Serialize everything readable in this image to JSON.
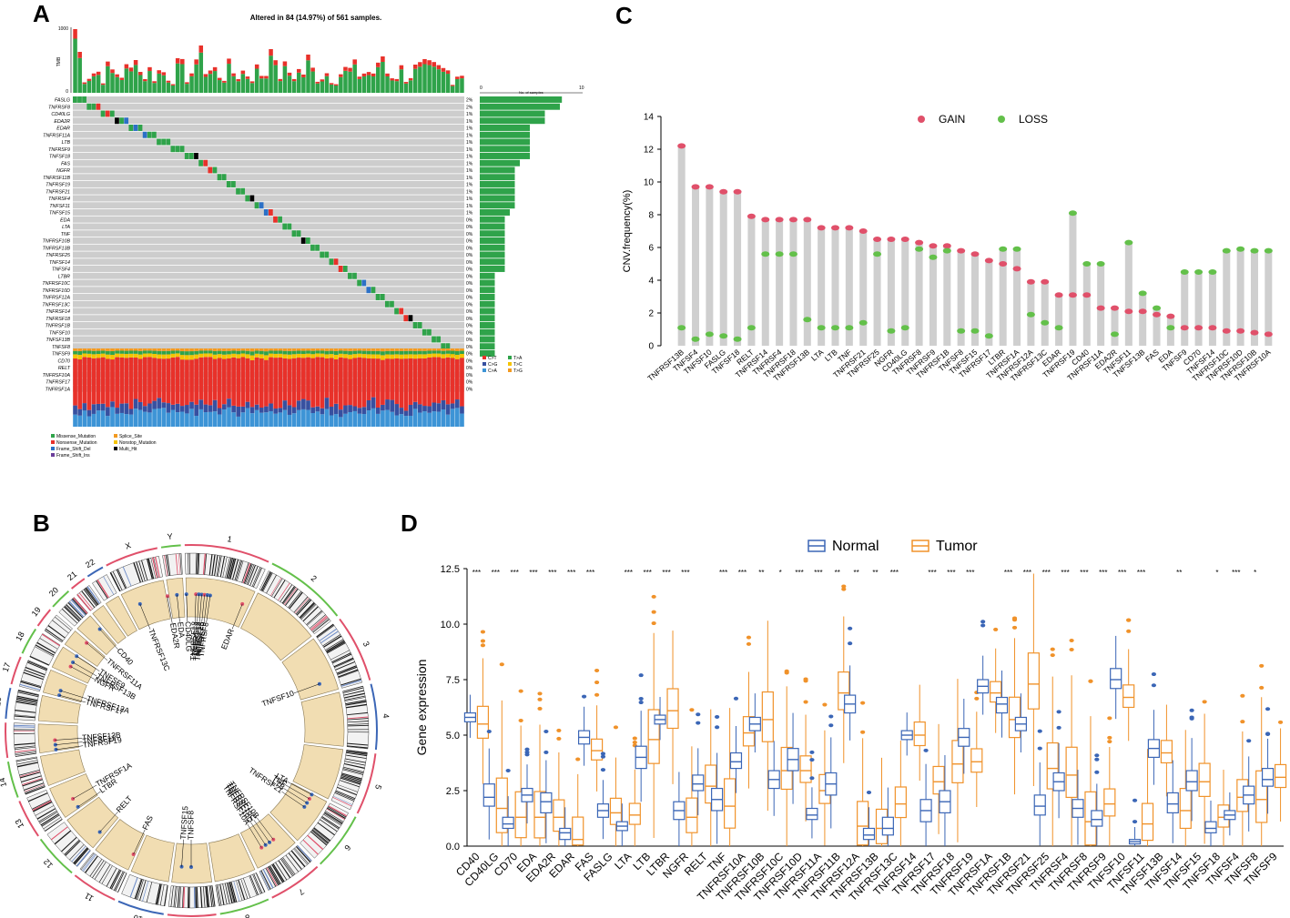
{
  "panels": {
    "a": "A",
    "b": "B",
    "c": "C",
    "d": "D"
  },
  "oncoplot": {
    "title": "Altered in 84 (14.97%) of 561 samples.",
    "tmb_label": "TMB",
    "tmb_ticks": [
      "1000",
      "0"
    ],
    "side_axis_label": "No. of samples",
    "side_ticks": [
      "0",
      "10"
    ],
    "genes": [
      {
        "name": "FASLG",
        "pct": "2%",
        "bar": 8.2
      },
      {
        "name": "TNFRSF8",
        "pct": "2%",
        "bar": 8.0
      },
      {
        "name": "CD40LG",
        "pct": "1%",
        "bar": 6.5
      },
      {
        "name": "EDA2R",
        "pct": "1%",
        "bar": 6.5
      },
      {
        "name": "EDAR",
        "pct": "1%",
        "bar": 5.0
      },
      {
        "name": "TNFRSF11A",
        "pct": "1%",
        "bar": 5.0
      },
      {
        "name": "LTB",
        "pct": "1%",
        "bar": 5.0
      },
      {
        "name": "TNFRSF9",
        "pct": "1%",
        "bar": 5.0
      },
      {
        "name": "TNFSF18",
        "pct": "1%",
        "bar": 5.0
      },
      {
        "name": "FAS",
        "pct": "1%",
        "bar": 4.0
      },
      {
        "name": "NGFR",
        "pct": "1%",
        "bar": 3.5
      },
      {
        "name": "TNFRSF11B",
        "pct": "1%",
        "bar": 3.5
      },
      {
        "name": "TNFRSF19",
        "pct": "1%",
        "bar": 3.5
      },
      {
        "name": "TNFRSF21",
        "pct": "1%",
        "bar": 3.5
      },
      {
        "name": "TNFRSF4",
        "pct": "1%",
        "bar": 3.5
      },
      {
        "name": "TNFSF11",
        "pct": "1%",
        "bar": 3.5
      },
      {
        "name": "TNFSF15",
        "pct": "1%",
        "bar": 3.0
      },
      {
        "name": "EDA",
        "pct": "0%",
        "bar": 2.5
      },
      {
        "name": "LTA",
        "pct": "0%",
        "bar": 2.5
      },
      {
        "name": "TNF",
        "pct": "0%",
        "bar": 2.5
      },
      {
        "name": "TNFRSF10B",
        "pct": "0%",
        "bar": 2.5
      },
      {
        "name": "TNFRSF13B",
        "pct": "0%",
        "bar": 2.5
      },
      {
        "name": "TNFRSF25",
        "pct": "0%",
        "bar": 2.5
      },
      {
        "name": "TNFSF14",
        "pct": "0%",
        "bar": 2.5
      },
      {
        "name": "TNFSF4",
        "pct": "0%",
        "bar": 2.5
      },
      {
        "name": "LTBR",
        "pct": "0%",
        "bar": 1.5
      },
      {
        "name": "TNFRSF10C",
        "pct": "0%",
        "bar": 1.5
      },
      {
        "name": "TNFRSF10D",
        "pct": "0%",
        "bar": 1.5
      },
      {
        "name": "TNFRSF12A",
        "pct": "0%",
        "bar": 1.5
      },
      {
        "name": "TNFRSF13C",
        "pct": "0%",
        "bar": 1.5
      },
      {
        "name": "TNFRSF14",
        "pct": "0%",
        "bar": 1.5
      },
      {
        "name": "TNFRSF18",
        "pct": "0%",
        "bar": 1.5
      },
      {
        "name": "TNFRSF1B",
        "pct": "0%",
        "bar": 1.5
      },
      {
        "name": "TNFSF10",
        "pct": "0%",
        "bar": 1.5
      },
      {
        "name": "TNFSF13B",
        "pct": "0%",
        "bar": 1.5
      },
      {
        "name": "TNFSF8",
        "pct": "0%",
        "bar": 1.5
      },
      {
        "name": "TNFSF9",
        "pct": "0%",
        "bar": 1.5
      },
      {
        "name": "CD70",
        "pct": "0%",
        "bar": 0
      },
      {
        "name": "RELT",
        "pct": "0%",
        "bar": 0
      },
      {
        "name": "TNFRSF10A",
        "pct": "0%",
        "bar": 0
      },
      {
        "name": "TNFRSF17",
        "pct": "0%",
        "bar": 0
      },
      {
        "name": "TNFRSF1A",
        "pct": "0%",
        "bar": 0
      }
    ],
    "titv_legend": [
      "C>T",
      "C>G",
      "C>A",
      "T>A",
      "T>C",
      "T>G"
    ],
    "titv_colors": [
      "#e8312a",
      "#3750a0",
      "#3d94d6",
      "#2fa34a",
      "#f5c400",
      "#f39a20"
    ],
    "variant_legend": [
      "Missense_Mutation",
      "Nonsense_Mutation",
      "Frame_Shift_Del",
      "Frame_Shift_Ins",
      "Splice_Site",
      "Nonstop_Mutation",
      "Multi_Hit"
    ],
    "variant_colors": [
      "#2fa34a",
      "#e8312a",
      "#2b70c6",
      "#6a3d9a",
      "#f39a20",
      "#f5c400",
      "#000000"
    ]
  },
  "circos": {
    "chromosomes": [
      "1",
      "2",
      "3",
      "4",
      "5",
      "6",
      "7",
      "8",
      "9",
      "10",
      "11",
      "12",
      "13",
      "14",
      "15",
      "16",
      "17",
      "18",
      "19",
      "20",
      "21",
      "22",
      "X",
      "Y"
    ],
    "gene_labels": [
      "TNFRSF18",
      "TNFRSF4",
      "TNFRSF14",
      "TNFRSF25",
      "TNFRSF9",
      "TNFRSF8",
      "EDAR",
      "TNFSF10",
      "LTA",
      "TNF",
      "LTB",
      "TNFRSF21",
      "TNFRSF10B",
      "TNFRSF10C",
      "TNFRSF10D",
      "TNFRSF10A",
      "TNFSF8",
      "TNFSF15",
      "FAS",
      "RELT",
      "LTBR",
      "TNFRSF1A",
      "TNFRSF19",
      "TNFSF11",
      "TNFSF13B",
      "TNFRSF17",
      "TNFRSF12A",
      "NGFR",
      "TNFRSF13B",
      "TNFSF9",
      "TNFRSF11A",
      "CD40",
      "TNFRSF13C",
      "EDA2R",
      "EDA",
      "CD40LG"
    ]
  },
  "chart_data": [
    {
      "type": "lollipop",
      "title": "",
      "ylabel": "CNV.frequency(%)",
      "ylim": [
        0,
        14
      ],
      "yticks": [
        "0",
        "2",
        "4",
        "6",
        "8",
        "10",
        "12",
        "14"
      ],
      "legend": [
        "GAIN",
        "LOSS"
      ],
      "colors": {
        "gain": "#e0506a",
        "loss": "#63c04a"
      },
      "categories": [
        "TNFRSF13B",
        "TNFSF4",
        "TNFSF10",
        "FASLG",
        "TNFSF18",
        "RELT",
        "TNFRSF14",
        "TNFRSF4",
        "TNFRSF18",
        "TNFRSF13B",
        "LTA",
        "LTB",
        "TNF",
        "TNFRSF21",
        "TNFRSF25",
        "NGFR",
        "CD40LG",
        "TNFRSF8",
        "TNFRSF9",
        "TNFRSF1B",
        "TNFSF8",
        "TNFSF15",
        "TNFRSF17",
        "LTBR",
        "TNFRSF1A",
        "TNFRSF12A",
        "TNFRSF13C",
        "EDAR",
        "TNFRSF19",
        "CD40",
        "TNFRSF11A",
        "EDA2R",
        "TNFSF11",
        "TNFSF13B",
        "FAS",
        "EDA",
        "TNFSF9",
        "CD70",
        "TNFSF14",
        "TNFRSF10C",
        "TNFRSF10D",
        "TNFRSF10B",
        "TNFRSF10A"
      ],
      "series": [
        {
          "name": "GAIN",
          "values": [
            12.2,
            9.7,
            9.7,
            9.4,
            9.4,
            7.9,
            7.7,
            7.7,
            7.7,
            7.7,
            7.2,
            7.2,
            7.2,
            7.0,
            6.5,
            6.5,
            6.5,
            6.3,
            6.1,
            6.1,
            5.8,
            5.6,
            5.2,
            5.0,
            4.7,
            3.9,
            3.9,
            3.1,
            3.1,
            3.1,
            2.3,
            2.3,
            2.1,
            2.1,
            1.9,
            1.8,
            1.1,
            1.1,
            1.1,
            0.9,
            0.9,
            0.8,
            0.7
          ]
        },
        {
          "name": "LOSS",
          "values": [
            1.1,
            0.4,
            0.7,
            0.6,
            0.4,
            1.1,
            5.6,
            5.6,
            5.6,
            1.6,
            1.1,
            1.1,
            1.1,
            1.4,
            5.6,
            0.9,
            1.1,
            5.9,
            5.4,
            5.8,
            0.9,
            0.9,
            0.6,
            5.9,
            5.9,
            1.9,
            1.4,
            1.1,
            8.1,
            5.0,
            5.0,
            0.7,
            6.3,
            3.2,
            2.3,
            1.1,
            4.5,
            4.5,
            4.5,
            5.8,
            5.9,
            5.8,
            5.8
          ]
        }
      ]
    },
    {
      "type": "box",
      "ylabel": "Gene expression",
      "ylim": [
        0,
        12.5
      ],
      "yticks": [
        "0.0",
        "2.5",
        "5.0",
        "7.5",
        "10.0",
        "12.5"
      ],
      "legend": [
        "Normal",
        "Tumor"
      ],
      "colors": {
        "normal": "#3b66b6",
        "tumor": "#f0922a"
      },
      "categories": [
        "CD40",
        "CD40LG",
        "CD70",
        "EDA",
        "EDA2R",
        "EDAR",
        "FAS",
        "FASLG",
        "LTA",
        "LTB",
        "LTBR",
        "NGFR",
        "RELT",
        "TNF",
        "TNFRSF10A",
        "TNFRSF10B",
        "TNFRSF10C",
        "TNFRSF10D",
        "TNFRSF11A",
        "TNFRSF11B",
        "TNFRSF12A",
        "TNFRSF13B",
        "TNFRSF13C",
        "TNFRSF14",
        "TNFRSF17",
        "TNFRSF18",
        "TNFRSF19",
        "TNFRSF1A",
        "TNFRSF1B",
        "TNFRSF21",
        "TNFRSF25",
        "TNFRSF4",
        "TNFRSF8",
        "TNFRSF9",
        "TNFSF10",
        "TNFSF11",
        "TNFSF13B",
        "TNFSF14",
        "TNFSF15",
        "TNFSF18",
        "TNFSF4",
        "TNFSF8",
        "TNFSF9"
      ],
      "significance": [
        "***",
        "***",
        "***",
        "***",
        "***",
        "***",
        "***",
        "",
        "***",
        "***",
        "***",
        "***",
        "",
        "***",
        "***",
        "**",
        "*",
        "***",
        "***",
        "**",
        "**",
        "**",
        "***",
        "",
        "***",
        "***",
        "***",
        "",
        "***",
        "***",
        "***",
        "***",
        "***",
        "***",
        "***",
        "***",
        "",
        "**",
        "",
        "*",
        "***",
        "*",
        ""
      ],
      "normal_median": [
        5.8,
        2.2,
        1.0,
        2.3,
        2.0,
        0.6,
        4.9,
        1.6,
        0.9,
        4.0,
        5.7,
        1.6,
        2.8,
        2.1,
        3.8,
        5.5,
        3.0,
        3.9,
        1.4,
        2.8,
        6.4,
        0.5,
        0.8,
        5.0,
        1.6,
        2.0,
        4.9,
        7.2,
        6.4,
        5.5,
        1.8,
        2.9,
        1.7,
        1.2,
        7.5,
        0.2,
        4.4,
        1.9,
        2.9,
        0.8,
        1.4,
        2.3,
        3.0
      ],
      "normal_q1": [
        5.6,
        1.8,
        0.8,
        2.0,
        1.5,
        0.3,
        4.6,
        1.3,
        0.7,
        3.5,
        5.5,
        1.2,
        2.5,
        1.6,
        3.5,
        5.2,
        2.6,
        3.4,
        1.2,
        2.3,
        6.0,
        0.3,
        0.5,
        4.8,
        1.1,
        1.5,
        4.5,
        6.9,
        6.0,
        5.2,
        1.4,
        2.5,
        1.3,
        0.9,
        7.1,
        0.1,
        4.0,
        1.5,
        2.5,
        0.6,
        1.2,
        1.9,
        2.7
      ],
      "normal_q3": [
        6.0,
        2.8,
        1.3,
        2.6,
        2.4,
        0.8,
        5.2,
        1.9,
        1.1,
        4.5,
        5.9,
        2.0,
        3.2,
        2.6,
        4.2,
        5.8,
        3.4,
        4.4,
        1.7,
        3.3,
        6.8,
        0.8,
        1.3,
        5.2,
        2.1,
        2.5,
        5.3,
        7.5,
        6.7,
        5.8,
        2.3,
        3.3,
        2.1,
        1.6,
        8.0,
        0.3,
        4.8,
        2.4,
        3.4,
        1.1,
        1.6,
        2.7,
        3.5
      ],
      "tumor_median": [
        5.5,
        1.7,
        1.3,
        1.3,
        1.3,
        0.3,
        4.3,
        1.5,
        1.4,
        4.8,
        6.1,
        1.3,
        2.7,
        1.8,
        5.1,
        5.7,
        3.4,
        3.4,
        2.5,
        6.9,
        0.9,
        0.8,
        1.9,
        5.0,
        2.9,
        3.7,
        3.8,
        6.9,
        5.7,
        7.3,
        3.5,
        3.2,
        1.1,
        1.9,
        6.7,
        1.0,
        4.2,
        1.6,
        2.9,
        1.3,
        2.2,
        2.1,
        3.1
      ]
    }
  ]
}
